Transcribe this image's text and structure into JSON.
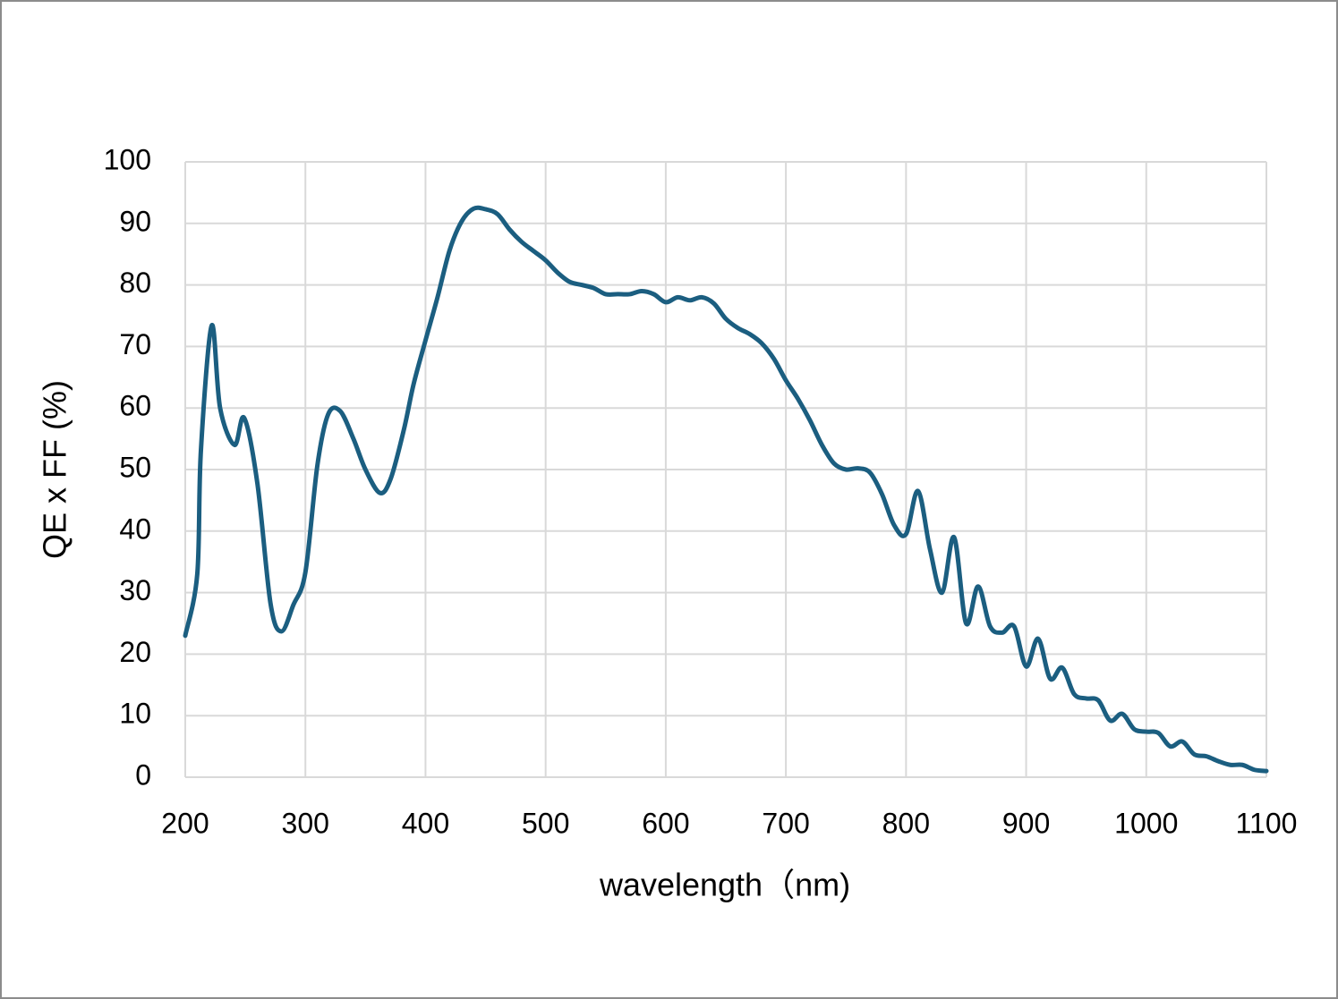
{
  "chart_data": {
    "type": "line",
    "x_label": "wavelength（nm)",
    "y_label": "QE x FF (%)",
    "x": [
      200,
      210,
      213,
      222,
      229,
      241,
      249,
      260,
      271,
      280,
      290,
      300,
      310,
      319,
      329,
      340,
      350,
      362,
      371,
      382,
      390,
      400,
      410,
      420,
      430,
      440,
      450,
      460,
      470,
      480,
      490,
      500,
      510,
      520,
      530,
      540,
      550,
      560,
      570,
      580,
      590,
      600,
      610,
      620,
      630,
      640,
      650,
      660,
      670,
      680,
      690,
      700,
      710,
      720,
      730,
      740,
      750,
      760,
      770,
      780,
      790,
      800,
      810,
      820,
      830,
      840,
      850,
      860,
      870,
      880,
      890,
      900,
      910,
      920,
      930,
      940,
      950,
      960,
      970,
      980,
      990,
      1000,
      1010,
      1020,
      1030,
      1040,
      1050,
      1060,
      1070,
      1080,
      1090,
      1100
    ],
    "series": [
      {
        "name": "QE x FF",
        "color": "#1b5e80",
        "values": [
          23,
          33,
          53,
          73.4,
          60,
          54,
          58.4,
          47.8,
          28.2,
          23.7,
          28,
          33.3,
          50.7,
          59,
          59.5,
          55,
          50,
          46.2,
          48.5,
          56.5,
          63.8,
          71,
          78,
          85.6,
          90.3,
          92.4,
          92.3,
          91.5,
          89,
          87,
          85.5,
          84,
          82,
          80.5,
          80,
          79.5,
          78.5,
          78.5,
          78.5,
          79,
          78.5,
          77.2,
          78,
          77.5,
          78,
          77,
          74.5,
          73,
          72,
          70.5,
          68,
          64.5,
          61.5,
          58,
          54,
          51,
          50,
          50.2,
          49.5,
          46,
          41,
          39.5,
          46.5,
          37,
          30,
          39,
          25,
          31,
          24.5,
          23.5,
          24.5,
          18,
          22.5,
          16,
          17.8,
          13.5,
          12.8,
          12.5,
          9.2,
          10.3,
          7.8,
          7.4,
          7.2,
          5,
          5.8,
          3.7,
          3.4,
          2.6,
          2,
          2,
          1.2,
          1
        ]
      }
    ],
    "xlim": [
      200,
      1100
    ],
    "xticks": [
      200,
      300,
      400,
      500,
      600,
      700,
      800,
      900,
      1000,
      1100
    ],
    "ylim": [
      0,
      100
    ],
    "yticks": [
      0,
      10,
      20,
      30,
      40,
      50,
      60,
      70,
      80,
      90,
      100
    ],
    "grid": true
  }
}
